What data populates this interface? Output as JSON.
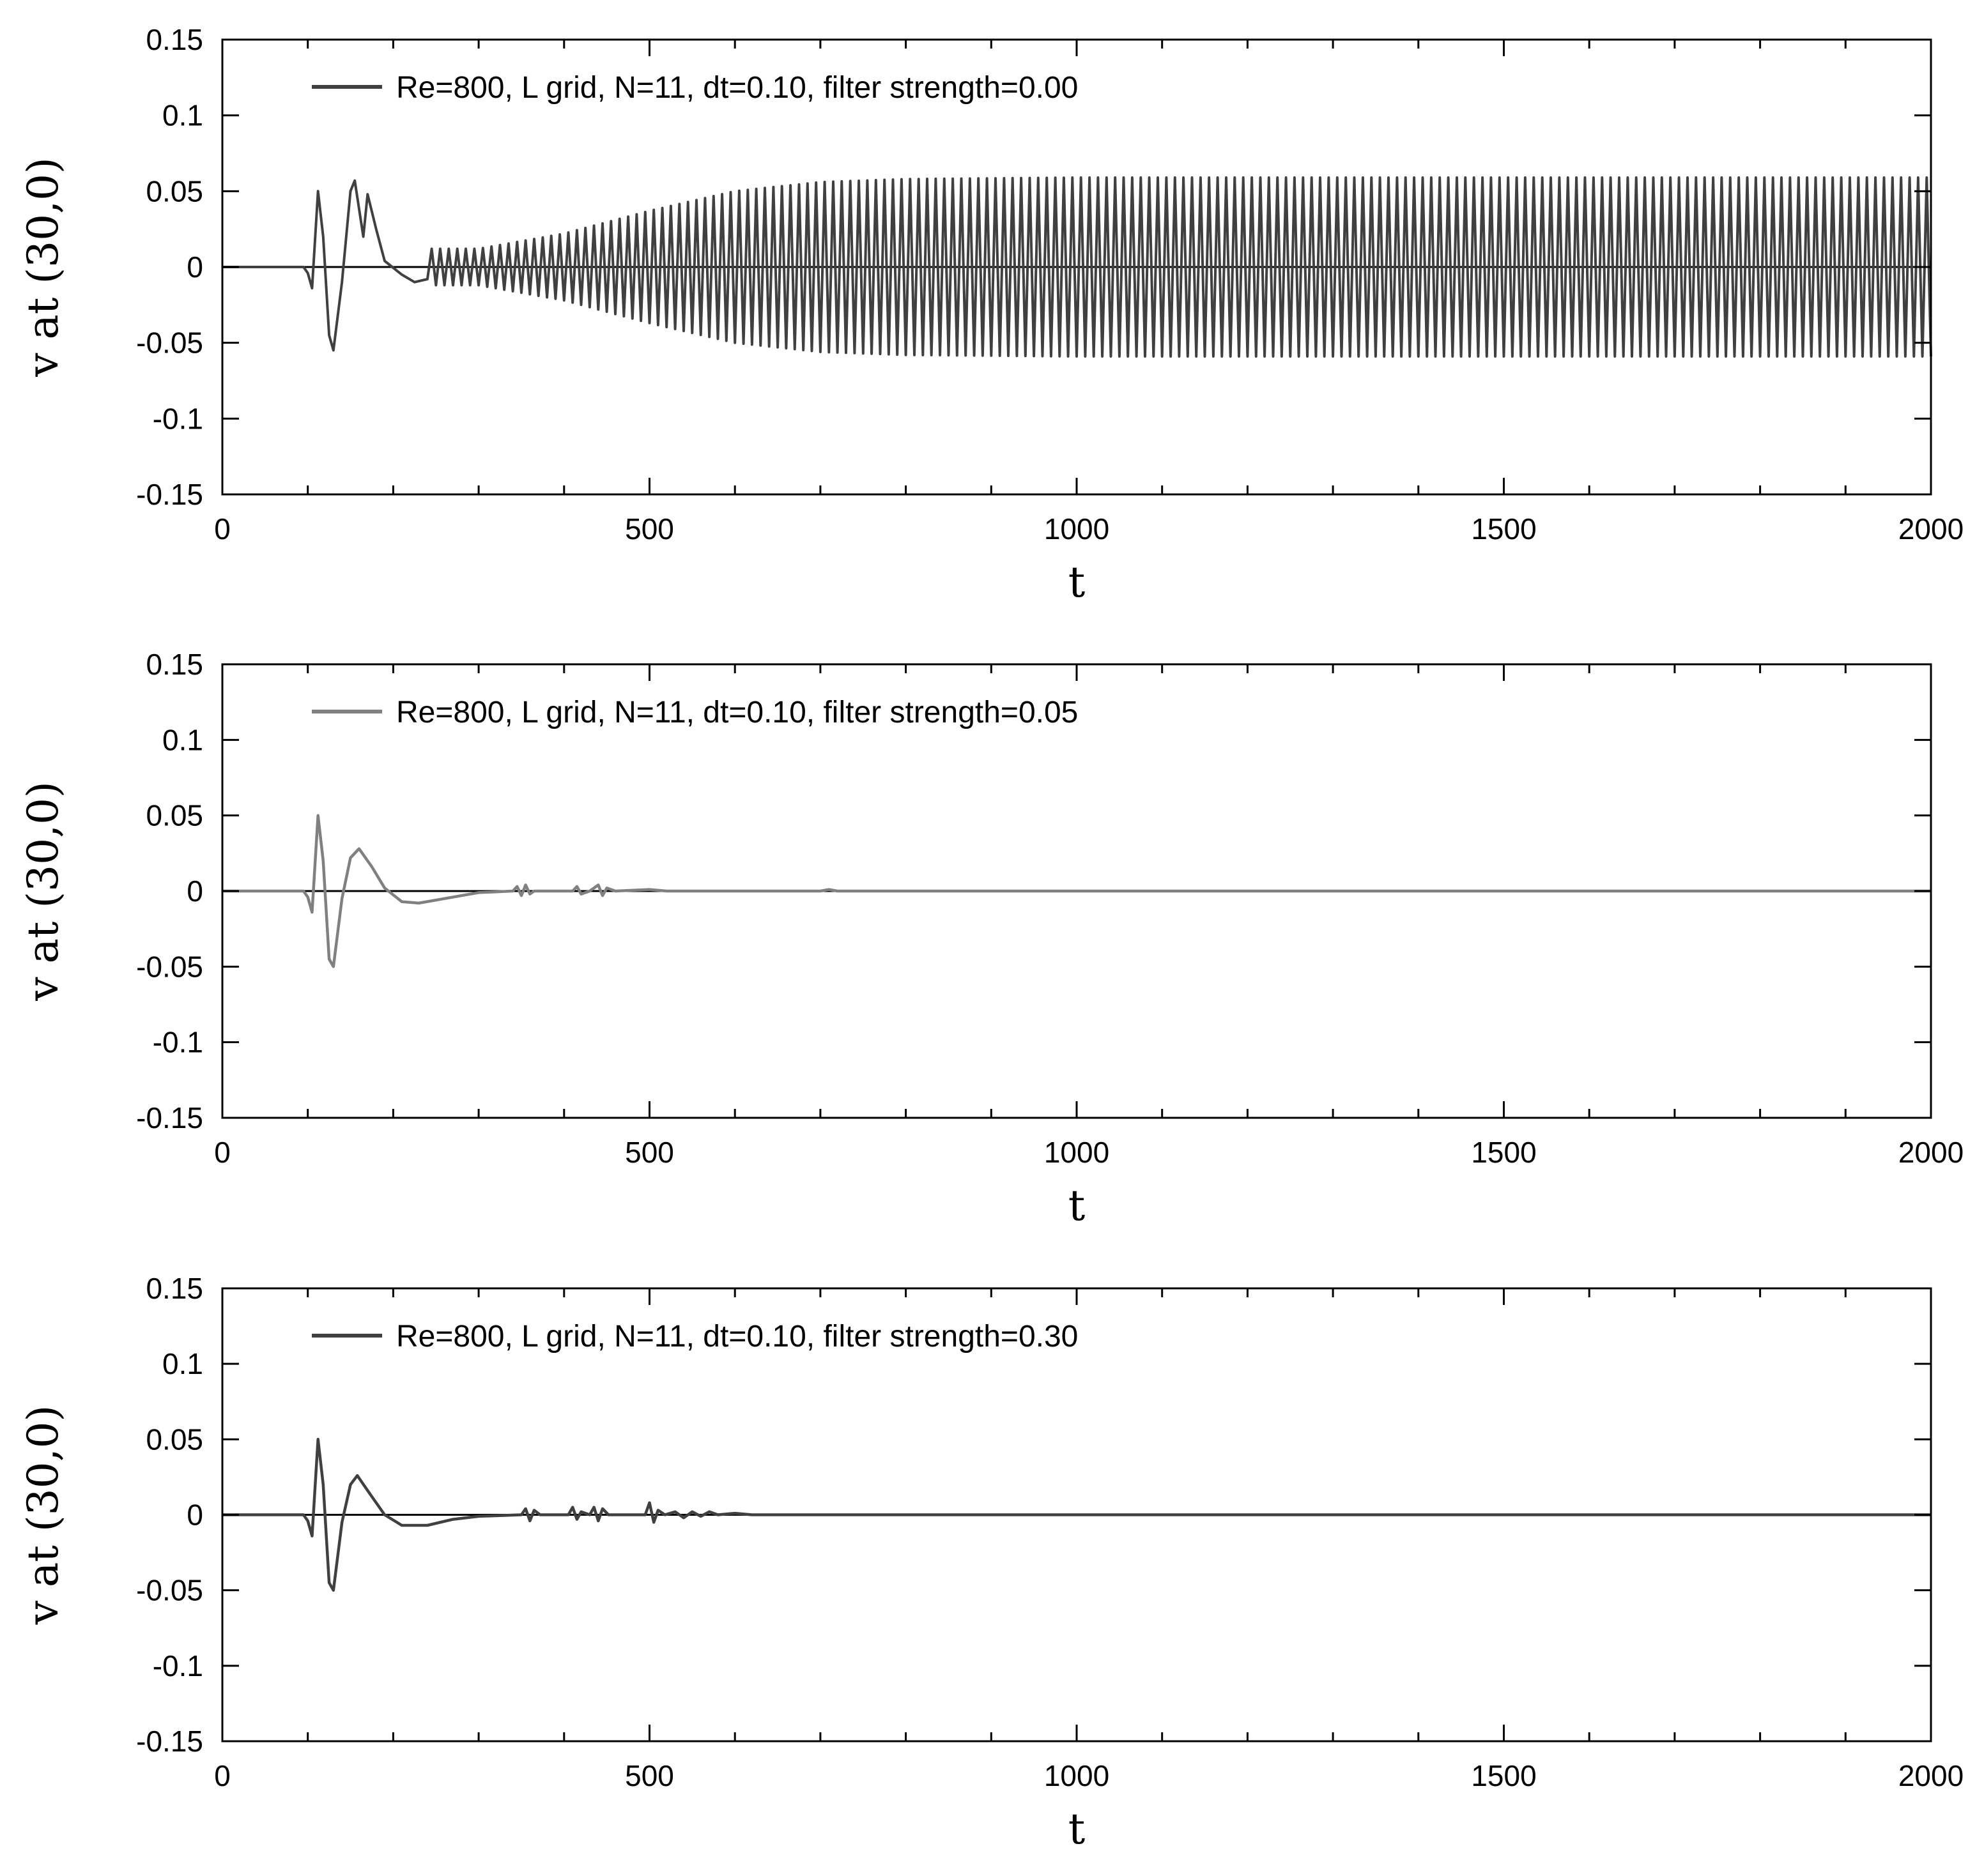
{
  "chart_data": [
    {
      "type": "line",
      "xlabel": "t",
      "ylabel": "v at (30,0)",
      "xlim": [
        0,
        2000
      ],
      "ylim": [
        -0.15,
        0.15
      ],
      "xticks": [
        0,
        500,
        1000,
        1500,
        2000
      ],
      "xtick_labels": [
        "0",
        "500",
        "1000",
        "1500",
        "2000"
      ],
      "xminor_step": 100,
      "yticks": [
        -0.15,
        -0.1,
        -0.05,
        0,
        0.05,
        0.1,
        0.15
      ],
      "ytick_labels": [
        "-0.15",
        "-0.1",
        "-0.05",
        "0",
        "0.05",
        "0.1",
        "0.15"
      ],
      "legend_position": "top-left",
      "series": [
        {
          "name": "Re=800, L grid, N=11, dt=0.10, filter strength=0.00",
          "color": "#404040",
          "behavior": "oscillation grows and saturates",
          "period": 10,
          "points": [
            [
              0,
              0
            ],
            [
              95,
              0
            ],
            [
              100,
              -0.004
            ],
            [
              105,
              -0.014
            ],
            [
              112,
              0.05
            ],
            [
              118,
              0.02
            ],
            [
              125,
              -0.045
            ],
            [
              130,
              -0.055
            ],
            [
              140,
              -0.01
            ],
            [
              150,
              0.05
            ],
            [
              155,
              0.057
            ],
            [
              165,
              0.02
            ],
            [
              170,
              0.048
            ],
            [
              180,
              0.025
            ],
            [
              190,
              0.004
            ],
            [
              210,
              -0.005
            ],
            [
              225,
              -0.01
            ],
            [
              240,
              -0.008
            ]
          ],
          "envelope": [
            [
              220,
              0.012
            ],
            [
              300,
              0.012
            ],
            [
              400,
              0.022
            ],
            [
              500,
              0.037
            ],
            [
              600,
              0.05
            ],
            [
              700,
              0.056
            ],
            [
              800,
              0.058
            ],
            [
              1000,
              0.059
            ],
            [
              1500,
              0.059
            ],
            [
              2000,
              0.059
            ]
          ]
        }
      ]
    },
    {
      "type": "line",
      "xlabel": "t",
      "ylabel": "v at (30,0)",
      "xlim": [
        0,
        2000
      ],
      "ylim": [
        -0.15,
        0.15
      ],
      "xticks": [
        0,
        500,
        1000,
        1500,
        2000
      ],
      "xtick_labels": [
        "0",
        "500",
        "1000",
        "1500",
        "2000"
      ],
      "xminor_step": 100,
      "yticks": [
        -0.15,
        -0.1,
        -0.05,
        0,
        0.05,
        0.1,
        0.15
      ],
      "ytick_labels": [
        "-0.15",
        "-0.1",
        "-0.05",
        "0",
        "0.05",
        "0.1",
        "0.15"
      ],
      "legend_position": "top-left",
      "series": [
        {
          "name": "Re=800, L grid, N=11, dt=0.10, filter strength=0.05",
          "color": "#808080",
          "behavior": "transient decays",
          "points": [
            [
              0,
              0
            ],
            [
              95,
              0
            ],
            [
              100,
              -0.004
            ],
            [
              105,
              -0.014
            ],
            [
              112,
              0.05
            ],
            [
              118,
              0.02
            ],
            [
              125,
              -0.045
            ],
            [
              130,
              -0.05
            ],
            [
              140,
              -0.005
            ],
            [
              150,
              0.022
            ],
            [
              160,
              0.028
            ],
            [
              175,
              0.016
            ],
            [
              190,
              0.002
            ],
            [
              210,
              -0.007
            ],
            [
              230,
              -0.008
            ],
            [
              260,
              -0.005
            ],
            [
              300,
              -0.001
            ],
            [
              340,
              0
            ],
            [
              345,
              0.003
            ],
            [
              350,
              -0.003
            ],
            [
              355,
              0.004
            ],
            [
              360,
              -0.002
            ],
            [
              365,
              0
            ],
            [
              410,
              0
            ],
            [
              415,
              0.003
            ],
            [
              420,
              -0.002
            ],
            [
              430,
              0
            ],
            [
              440,
              0.004
            ],
            [
              445,
              -0.003
            ],
            [
              450,
              0.002
            ],
            [
              460,
              0
            ],
            [
              500,
              0.001
            ],
            [
              520,
              0
            ],
            [
              700,
              0
            ],
            [
              710,
              0.001
            ],
            [
              720,
              0
            ],
            [
              2000,
              0
            ]
          ]
        }
      ]
    },
    {
      "type": "line",
      "xlabel": "t",
      "ylabel": "v at (30,0)",
      "xlim": [
        0,
        2000
      ],
      "ylim": [
        -0.15,
        0.15
      ],
      "xticks": [
        0,
        500,
        1000,
        1500,
        2000
      ],
      "xtick_labels": [
        "0",
        "500",
        "1000",
        "1500",
        "2000"
      ],
      "xminor_step": 100,
      "yticks": [
        -0.15,
        -0.1,
        -0.05,
        0,
        0.05,
        0.1,
        0.15
      ],
      "ytick_labels": [
        "-0.15",
        "-0.1",
        "-0.05",
        "0",
        "0.05",
        "0.1",
        "0.15"
      ],
      "legend_position": "top-left",
      "series": [
        {
          "name": "Re=800, L grid, N=11, dt=0.10, filter strength=0.30",
          "color": "#404040",
          "behavior": "transient decays",
          "points": [
            [
              0,
              0
            ],
            [
              95,
              0
            ],
            [
              100,
              -0.004
            ],
            [
              105,
              -0.014
            ],
            [
              112,
              0.05
            ],
            [
              118,
              0.02
            ],
            [
              125,
              -0.045
            ],
            [
              130,
              -0.05
            ],
            [
              140,
              -0.005
            ],
            [
              150,
              0.02
            ],
            [
              158,
              0.026
            ],
            [
              175,
              0.012
            ],
            [
              190,
              0
            ],
            [
              210,
              -0.007
            ],
            [
              240,
              -0.007
            ],
            [
              270,
              -0.003
            ],
            [
              300,
              -0.001
            ],
            [
              350,
              0
            ],
            [
              355,
              0.004
            ],
            [
              360,
              -0.004
            ],
            [
              365,
              0.003
            ],
            [
              372,
              0
            ],
            [
              405,
              0
            ],
            [
              410,
              0.005
            ],
            [
              415,
              -0.003
            ],
            [
              420,
              0.002
            ],
            [
              430,
              0
            ],
            [
              435,
              0.005
            ],
            [
              440,
              -0.004
            ],
            [
              445,
              0.004
            ],
            [
              452,
              0
            ],
            [
              495,
              0
            ],
            [
              500,
              0.008
            ],
            [
              505,
              -0.005
            ],
            [
              510,
              0.003
            ],
            [
              518,
              0
            ],
            [
              530,
              0.002
            ],
            [
              540,
              -0.002
            ],
            [
              550,
              0.002
            ],
            [
              560,
              -0.001
            ],
            [
              570,
              0.002
            ],
            [
              580,
              0
            ],
            [
              600,
              0.001
            ],
            [
              620,
              0
            ],
            [
              2000,
              0
            ]
          ]
        }
      ]
    }
  ]
}
